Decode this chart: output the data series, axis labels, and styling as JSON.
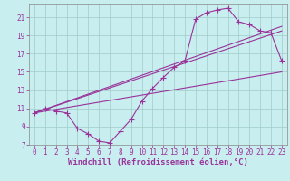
{
  "xlabel": "Windchill (Refroidissement éolien,°C)",
  "bg_color": "#c8eef0",
  "line_color": "#993399",
  "grid_color": "#a0ccc8",
  "xlim": [
    -0.5,
    23.5
  ],
  "ylim": [
    7,
    22.5
  ],
  "xticks": [
    0,
    1,
    2,
    3,
    4,
    5,
    6,
    7,
    8,
    9,
    10,
    11,
    12,
    13,
    14,
    15,
    16,
    17,
    18,
    19,
    20,
    21,
    22,
    23
  ],
  "yticks": [
    7,
    9,
    11,
    13,
    15,
    17,
    19,
    21
  ],
  "series1_x": [
    0,
    1,
    2,
    3,
    4,
    5,
    6,
    7,
    8,
    9,
    10,
    11,
    12,
    13,
    14,
    15,
    16,
    17,
    18,
    19,
    20,
    21,
    22,
    23
  ],
  "series1_y": [
    10.5,
    11.0,
    10.7,
    10.5,
    8.8,
    8.2,
    7.4,
    7.2,
    8.5,
    9.8,
    11.8,
    13.2,
    14.4,
    15.5,
    16.2,
    20.8,
    21.5,
    21.8,
    22.0,
    20.5,
    20.2,
    19.5,
    19.3,
    16.2
  ],
  "line1_x": [
    0,
    23
  ],
  "line1_y": [
    10.5,
    20.0
  ],
  "line2_x": [
    0,
    23
  ],
  "line2_y": [
    10.5,
    19.5
  ],
  "line3_x": [
    0,
    23
  ],
  "line3_y": [
    10.5,
    15.0
  ],
  "fontsize": 6.5,
  "tick_fontsize": 5.5,
  "marker_size": 2.2,
  "linewidth": 0.8
}
